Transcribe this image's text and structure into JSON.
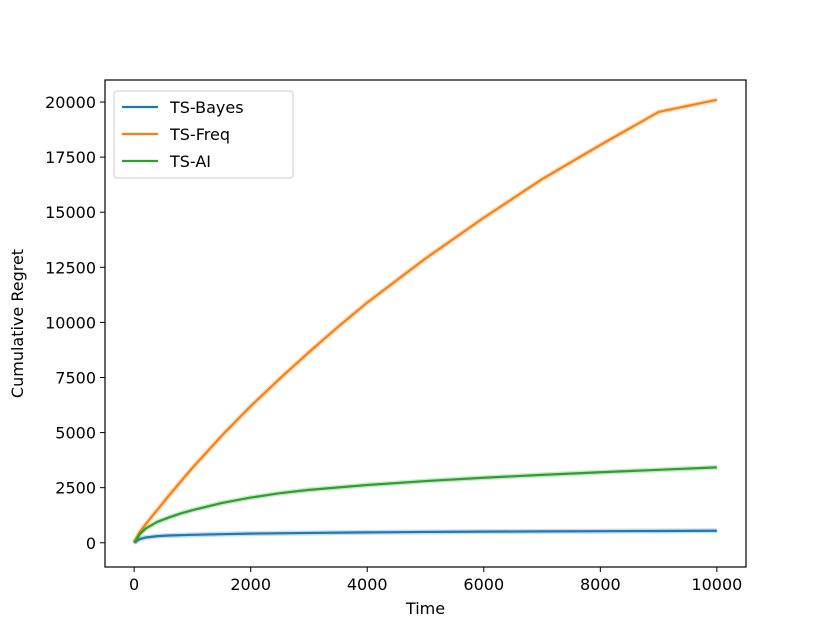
{
  "chart_data": {
    "type": "line",
    "title": "",
    "xlabel": "Time",
    "ylabel": "Cumulative Regret",
    "xlim": [
      -500,
      10500
    ],
    "ylim": [
      -1100,
      21000
    ],
    "xticks": [
      0,
      2000,
      4000,
      6000,
      8000,
      10000
    ],
    "xtick_labels": [
      "0",
      "2000",
      "4000",
      "6000",
      "8000",
      "10000"
    ],
    "yticks": [
      0,
      2500,
      5000,
      7500,
      10000,
      12500,
      15000,
      17500,
      20000
    ],
    "ytick_labels": [
      "0",
      "2500",
      "5000",
      "7500",
      "10000",
      "12500",
      "15000",
      "17500",
      "20000"
    ],
    "grid": false,
    "legend_position": "top-left",
    "series": [
      {
        "name": "TS-Bayes",
        "color": "#1f77b4",
        "x": [
          0,
          100,
          200,
          400,
          600,
          1000,
          1500,
          2000,
          3000,
          4000,
          5000,
          6000,
          7000,
          8000,
          9000,
          10000
        ],
        "y": [
          0,
          170,
          240,
          300,
          330,
          360,
          390,
          415,
          445,
          470,
          490,
          505,
          515,
          525,
          535,
          545
        ]
      },
      {
        "name": "TS-Freq",
        "color": "#ff7f0e",
        "x": [
          0,
          100,
          200,
          400,
          600,
          800,
          1000,
          1500,
          2000,
          2500,
          3000,
          3500,
          4000,
          5000,
          6000,
          7000,
          8000,
          9000,
          10000
        ],
        "y": [
          0,
          500,
          850,
          1500,
          2150,
          2780,
          3400,
          4850,
          6200,
          7450,
          8650,
          9800,
          10900,
          12900,
          14750,
          16500,
          18050,
          19550,
          20100
        ]
      },
      {
        "name": "TS-AI",
        "color": "#2ca02c",
        "x": [
          0,
          100,
          200,
          400,
          600,
          800,
          1000,
          1500,
          2000,
          2500,
          3000,
          4000,
          5000,
          6000,
          7000,
          8000,
          9000,
          10000
        ],
        "y": [
          0,
          400,
          650,
          950,
          1150,
          1330,
          1480,
          1800,
          2050,
          2250,
          2400,
          2620,
          2800,
          2950,
          3080,
          3200,
          3310,
          3420
        ]
      }
    ]
  }
}
